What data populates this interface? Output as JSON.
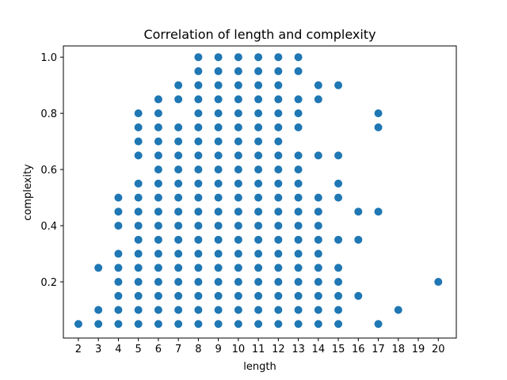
{
  "chart_data": {
    "type": "scatter",
    "title": "Correlation of length and complexity",
    "xlabel": "length",
    "ylabel": "complexity",
    "xlim": [
      1.25,
      20.9
    ],
    "ylim": [
      0.0,
      1.04
    ],
    "x_ticks": [
      2,
      3,
      4,
      5,
      6,
      7,
      8,
      9,
      10,
      11,
      12,
      13,
      14,
      15,
      16,
      17,
      18,
      19,
      20
    ],
    "y_ticks": [
      0.2,
      0.4,
      0.6,
      0.8,
      1.0
    ],
    "y_tick_labels": [
      "0.2",
      "0.4",
      "0.6",
      "0.8",
      "1.0"
    ],
    "grid": false,
    "marker_color": "#1f77b4",
    "points": [
      [
        2,
        0.05
      ],
      [
        3,
        0.05
      ],
      [
        3,
        0.1
      ],
      [
        3,
        0.25
      ],
      [
        4,
        0.05
      ],
      [
        4,
        0.1
      ],
      [
        4,
        0.15
      ],
      [
        4,
        0.2
      ],
      [
        4,
        0.25
      ],
      [
        4,
        0.3
      ],
      [
        4,
        0.4
      ],
      [
        4,
        0.45
      ],
      [
        4,
        0.5
      ],
      [
        5,
        0.05
      ],
      [
        5,
        0.1
      ],
      [
        5,
        0.15
      ],
      [
        5,
        0.2
      ],
      [
        5,
        0.25
      ],
      [
        5,
        0.3
      ],
      [
        5,
        0.35
      ],
      [
        5,
        0.4
      ],
      [
        5,
        0.45
      ],
      [
        5,
        0.5
      ],
      [
        5,
        0.55
      ],
      [
        5,
        0.65
      ],
      [
        5,
        0.7
      ],
      [
        5,
        0.75
      ],
      [
        5,
        0.8
      ],
      [
        6,
        0.05
      ],
      [
        6,
        0.1
      ],
      [
        6,
        0.15
      ],
      [
        6,
        0.2
      ],
      [
        6,
        0.25
      ],
      [
        6,
        0.3
      ],
      [
        6,
        0.35
      ],
      [
        6,
        0.4
      ],
      [
        6,
        0.45
      ],
      [
        6,
        0.5
      ],
      [
        6,
        0.55
      ],
      [
        6,
        0.6
      ],
      [
        6,
        0.65
      ],
      [
        6,
        0.7
      ],
      [
        6,
        0.75
      ],
      [
        6,
        0.8
      ],
      [
        6,
        0.85
      ],
      [
        7,
        0.05
      ],
      [
        7,
        0.1
      ],
      [
        7,
        0.15
      ],
      [
        7,
        0.2
      ],
      [
        7,
        0.25
      ],
      [
        7,
        0.3
      ],
      [
        7,
        0.35
      ],
      [
        7,
        0.4
      ],
      [
        7,
        0.45
      ],
      [
        7,
        0.5
      ],
      [
        7,
        0.55
      ],
      [
        7,
        0.6
      ],
      [
        7,
        0.65
      ],
      [
        7,
        0.7
      ],
      [
        7,
        0.75
      ],
      [
        7,
        0.85
      ],
      [
        7,
        0.9
      ],
      [
        8,
        0.05
      ],
      [
        8,
        0.1
      ],
      [
        8,
        0.15
      ],
      [
        8,
        0.2
      ],
      [
        8,
        0.25
      ],
      [
        8,
        0.3
      ],
      [
        8,
        0.35
      ],
      [
        8,
        0.4
      ],
      [
        8,
        0.45
      ],
      [
        8,
        0.5
      ],
      [
        8,
        0.55
      ],
      [
        8,
        0.6
      ],
      [
        8,
        0.65
      ],
      [
        8,
        0.7
      ],
      [
        8,
        0.75
      ],
      [
        8,
        0.8
      ],
      [
        8,
        0.85
      ],
      [
        8,
        0.9
      ],
      [
        8,
        0.95
      ],
      [
        8,
        1.0
      ],
      [
        9,
        0.05
      ],
      [
        9,
        0.1
      ],
      [
        9,
        0.15
      ],
      [
        9,
        0.2
      ],
      [
        9,
        0.25
      ],
      [
        9,
        0.3
      ],
      [
        9,
        0.35
      ],
      [
        9,
        0.4
      ],
      [
        9,
        0.45
      ],
      [
        9,
        0.5
      ],
      [
        9,
        0.55
      ],
      [
        9,
        0.6
      ],
      [
        9,
        0.65
      ],
      [
        9,
        0.7
      ],
      [
        9,
        0.75
      ],
      [
        9,
        0.8
      ],
      [
        9,
        0.85
      ],
      [
        9,
        0.9
      ],
      [
        9,
        0.95
      ],
      [
        9,
        1.0
      ],
      [
        10,
        0.05
      ],
      [
        10,
        0.1
      ],
      [
        10,
        0.15
      ],
      [
        10,
        0.2
      ],
      [
        10,
        0.25
      ],
      [
        10,
        0.3
      ],
      [
        10,
        0.35
      ],
      [
        10,
        0.4
      ],
      [
        10,
        0.45
      ],
      [
        10,
        0.5
      ],
      [
        10,
        0.55
      ],
      [
        10,
        0.6
      ],
      [
        10,
        0.65
      ],
      [
        10,
        0.7
      ],
      [
        10,
        0.75
      ],
      [
        10,
        0.8
      ],
      [
        10,
        0.85
      ],
      [
        10,
        0.9
      ],
      [
        10,
        0.95
      ],
      [
        10,
        1.0
      ],
      [
        11,
        0.05
      ],
      [
        11,
        0.1
      ],
      [
        11,
        0.15
      ],
      [
        11,
        0.2
      ],
      [
        11,
        0.25
      ],
      [
        11,
        0.3
      ],
      [
        11,
        0.35
      ],
      [
        11,
        0.4
      ],
      [
        11,
        0.45
      ],
      [
        11,
        0.5
      ],
      [
        11,
        0.55
      ],
      [
        11,
        0.6
      ],
      [
        11,
        0.65
      ],
      [
        11,
        0.7
      ],
      [
        11,
        0.75
      ],
      [
        11,
        0.8
      ],
      [
        11,
        0.85
      ],
      [
        11,
        0.9
      ],
      [
        11,
        0.95
      ],
      [
        11,
        1.0
      ],
      [
        12,
        0.05
      ],
      [
        12,
        0.1
      ],
      [
        12,
        0.15
      ],
      [
        12,
        0.2
      ],
      [
        12,
        0.25
      ],
      [
        12,
        0.3
      ],
      [
        12,
        0.35
      ],
      [
        12,
        0.4
      ],
      [
        12,
        0.45
      ],
      [
        12,
        0.5
      ],
      [
        12,
        0.55
      ],
      [
        12,
        0.6
      ],
      [
        12,
        0.65
      ],
      [
        12,
        0.7
      ],
      [
        12,
        0.75
      ],
      [
        12,
        0.8
      ],
      [
        12,
        0.85
      ],
      [
        12,
        0.9
      ],
      [
        12,
        0.95
      ],
      [
        12,
        1.0
      ],
      [
        13,
        0.05
      ],
      [
        13,
        0.1
      ],
      [
        13,
        0.15
      ],
      [
        13,
        0.2
      ],
      [
        13,
        0.25
      ],
      [
        13,
        0.3
      ],
      [
        13,
        0.35
      ],
      [
        13,
        0.4
      ],
      [
        13,
        0.45
      ],
      [
        13,
        0.5
      ],
      [
        13,
        0.55
      ],
      [
        13,
        0.6
      ],
      [
        13,
        0.65
      ],
      [
        13,
        0.75
      ],
      [
        13,
        0.8
      ],
      [
        13,
        0.85
      ],
      [
        13,
        0.95
      ],
      [
        13,
        1.0
      ],
      [
        14,
        0.05
      ],
      [
        14,
        0.1
      ],
      [
        14,
        0.15
      ],
      [
        14,
        0.2
      ],
      [
        14,
        0.25
      ],
      [
        14,
        0.3
      ],
      [
        14,
        0.35
      ],
      [
        14,
        0.4
      ],
      [
        14,
        0.45
      ],
      [
        14,
        0.5
      ],
      [
        14,
        0.65
      ],
      [
        14,
        0.85
      ],
      [
        14,
        0.9
      ],
      [
        15,
        0.05
      ],
      [
        15,
        0.1
      ],
      [
        15,
        0.15
      ],
      [
        15,
        0.2
      ],
      [
        15,
        0.25
      ],
      [
        15,
        0.35
      ],
      [
        15,
        0.5
      ],
      [
        15,
        0.55
      ],
      [
        15,
        0.65
      ],
      [
        15,
        0.9
      ],
      [
        16,
        0.15
      ],
      [
        16,
        0.35
      ],
      [
        16,
        0.45
      ],
      [
        17,
        0.05
      ],
      [
        17,
        0.45
      ],
      [
        17,
        0.75
      ],
      [
        17,
        0.8
      ],
      [
        18,
        0.1
      ],
      [
        20,
        0.2
      ]
    ]
  }
}
